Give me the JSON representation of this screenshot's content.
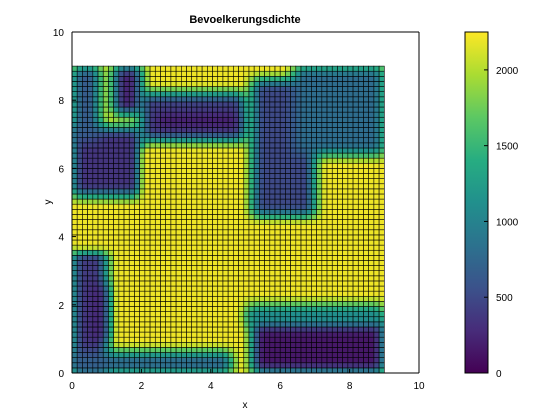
{
  "chart_data": {
    "type": "heatmap",
    "title": "Bevoelkerungsdichte",
    "xlabel": "x",
    "ylabel": "y",
    "xlim": [
      0,
      10
    ],
    "ylim": [
      0,
      10
    ],
    "xticks": [
      "0",
      "2",
      "4",
      "6",
      "8",
      "10"
    ],
    "yticks": [
      "0",
      "2",
      "4",
      "6",
      "8",
      "10"
    ],
    "data_extent": {
      "x": [
        0,
        9
      ],
      "y": [
        0,
        9
      ]
    },
    "grid_cells": 60,
    "colormap": "viridis",
    "colorbar": {
      "min": 0,
      "max": 2250,
      "ticks": [
        {
          "value": 0,
          "label": "0"
        },
        {
          "value": 500,
          "label": "500"
        },
        {
          "value": 1000,
          "label": "1000"
        },
        {
          "value": 1500,
          "label": "1500"
        },
        {
          "value": 2000,
          "label": "2000"
        }
      ]
    },
    "regions": [
      {
        "x": [
          0,
          9
        ],
        "y": [
          0,
          9
        ],
        "value": 2200
      },
      {
        "x": [
          0,
          2.0
        ],
        "y": [
          5.2,
          7.2
        ],
        "value": 350
      },
      {
        "x": [
          0,
          0.8
        ],
        "y": [
          6.8,
          9
        ],
        "value": 650
      },
      {
        "x": [
          1.2,
          2.0
        ],
        "y": [
          7.6,
          9
        ],
        "value": 250
      },
      {
        "x": [
          2.0,
          5.0
        ],
        "y": [
          6.8,
          8.2
        ],
        "value": 450
      },
      {
        "x": [
          2.4,
          4.8
        ],
        "y": [
          7.2,
          7.6
        ],
        "value": 150
      },
      {
        "x": [
          5.2,
          7.0
        ],
        "y": [
          4.6,
          8.6
        ],
        "value": 500
      },
      {
        "x": [
          6.4,
          9
        ],
        "y": [
          6.4,
          9
        ],
        "value": 800
      },
      {
        "x": [
          0,
          1.0
        ],
        "y": [
          0,
          3.6
        ],
        "value": 400
      },
      {
        "x": [
          0.5,
          1.0
        ],
        "y": [
          0.9,
          2.6
        ],
        "value": 250
      },
      {
        "x": [
          0,
          4.6
        ],
        "y": [
          0,
          0.6
        ],
        "value": 700
      },
      {
        "x": [
          5.2,
          9
        ],
        "y": [
          0,
          1.6
        ],
        "value": 150
      },
      {
        "x": [
          5.0,
          9
        ],
        "y": [
          1.4,
          2.0
        ],
        "value": 1100
      }
    ],
    "bands": [
      {
        "x": [
          0,
          9
        ],
        "y": [
          3.6,
          4.4
        ],
        "value": 2200
      },
      {
        "x": [
          2.0,
          4.8
        ],
        "y": [
          1.8,
          6.6
        ],
        "value": 2200
      }
    ],
    "colors": {
      "axis": "#000000",
      "cell_edge": "#000000",
      "background": "#ffffff"
    }
  }
}
